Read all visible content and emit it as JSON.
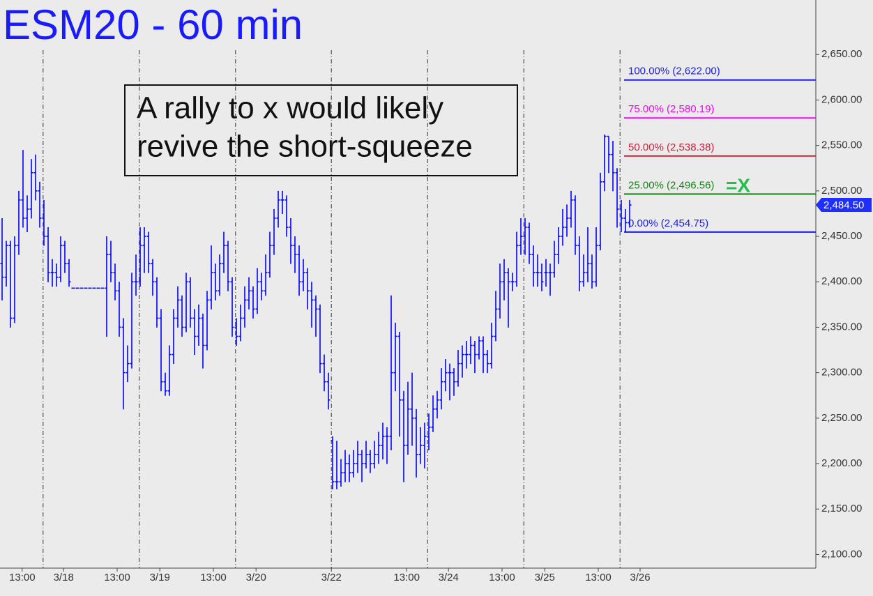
{
  "chart_data": {
    "type": "ohlc",
    "title": "ESM20 - 60 min",
    "annotation": {
      "lines": [
        "A rally to x would likely",
        "revive the short-squeeze"
      ]
    },
    "marker": {
      "text": "=X",
      "color": "#22c04a"
    },
    "color": "#0000ff",
    "xlim": [
      -0.5,
      194.5
    ],
    "ylim": [
      2085,
      2710
    ],
    "yticks": [
      {
        "value": 2100,
        "label": "2,100.00"
      },
      {
        "value": 2150,
        "label": "2,150.00"
      },
      {
        "value": 2200,
        "label": "2,200.00"
      },
      {
        "value": 2250,
        "label": "2,250.00"
      },
      {
        "value": 2300,
        "label": "2,300.00"
      },
      {
        "value": 2350,
        "label": "2,350.00"
      },
      {
        "value": 2400,
        "label": "2,400.00"
      },
      {
        "value": 2450,
        "label": "2,450.00"
      },
      {
        "value": 2500,
        "label": "2,500.00"
      },
      {
        "value": 2550,
        "label": "2,550.00"
      },
      {
        "value": 2600,
        "label": "2,600.00"
      },
      {
        "value": 2650,
        "label": "2,650.00"
      }
    ],
    "xticks": [
      {
        "value": 4.8,
        "label": "13:00"
      },
      {
        "value": 14.7,
        "label": "3/18"
      },
      {
        "value": 27.5,
        "label": "13:00"
      },
      {
        "value": 37.7,
        "label": "3/19"
      },
      {
        "value": 50.5,
        "label": "13:00"
      },
      {
        "value": 60.7,
        "label": "3/20"
      },
      {
        "value": 78.7,
        "label": "3/22"
      },
      {
        "value": 96.7,
        "label": "13:00"
      },
      {
        "value": 106.7,
        "label": "3/24"
      },
      {
        "value": 119.5,
        "label": "13:00"
      },
      {
        "value": 129.7,
        "label": "3/25"
      },
      {
        "value": 142.5,
        "label": "13:00"
      },
      {
        "value": 152.5,
        "label": "3/26"
      }
    ],
    "session_breaks": [
      9.8,
      32.8,
      55.8,
      78.7,
      101.7,
      124.7,
      147.7
    ],
    "fib_levels": [
      {
        "value": 2622.0,
        "label": "100.00% (2,622.00)",
        "color": "#1a1aff"
      },
      {
        "value": 2580.19,
        "label": "75.00% (2,580.19)",
        "color": "#ff00ff"
      },
      {
        "value": 2538.38,
        "label": "50.00% (2,538.38)",
        "color": "#d0203a"
      },
      {
        "value": 2496.56,
        "label": "25.00% (2,496.56)",
        "color": "#118811"
      },
      {
        "value": 2454.75,
        "label": "0.00% (2,454.75)",
        "color": "#1a1aff"
      }
    ],
    "current_price": {
      "value": 2484.5,
      "label": "2,484.50"
    },
    "bars": [
      [
        2420,
        2470,
        2380,
        2405
      ],
      [
        2405,
        2445,
        2395,
        2440
      ],
      [
        2440,
        2445,
        2350,
        2360
      ],
      [
        2360,
        2450,
        2355,
        2440
      ],
      [
        2440,
        2500,
        2430,
        2490
      ],
      [
        2490,
        2545,
        2460,
        2470
      ],
      [
        2470,
        2495,
        2455,
        2480
      ],
      [
        2480,
        2535,
        2470,
        2520
      ],
      [
        2520,
        2540,
        2490,
        2500
      ],
      [
        2500,
        2510,
        2460,
        2470
      ],
      [
        2470,
        2490,
        2440,
        2450
      ],
      [
        2450,
        2460,
        2400,
        2410
      ],
      [
        2410,
        2425,
        2395,
        2410
      ],
      [
        2410,
        2420,
        2395,
        2405
      ],
      [
        2405,
        2450,
        2400,
        2440
      ],
      [
        2440,
        2445,
        2410,
        2420
      ],
      [
        2420,
        2425,
        2395,
        2400
      ],
      [
        2393,
        2393,
        2393,
        2393
      ],
      [
        2393,
        2393,
        2393,
        2393
      ],
      [
        2393,
        2393,
        2393,
        2393
      ],
      [
        2393,
        2393,
        2393,
        2393
      ],
      [
        2393,
        2393,
        2393,
        2393
      ],
      [
        2393,
        2393,
        2393,
        2393
      ],
      [
        2393,
        2393,
        2393,
        2393
      ],
      [
        2393,
        2393,
        2393,
        2393
      ],
      [
        2393,
        2450,
        2340,
        2430
      ],
      [
        2430,
        2445,
        2400,
        2410
      ],
      [
        2410,
        2420,
        2380,
        2390
      ],
      [
        2390,
        2400,
        2340,
        2350
      ],
      [
        2350,
        2360,
        2260,
        2300
      ],
      [
        2300,
        2330,
        2290,
        2310
      ],
      [
        2310,
        2410,
        2305,
        2400
      ],
      [
        2400,
        2430,
        2385,
        2400
      ],
      [
        2400,
        2460,
        2395,
        2440
      ],
      [
        2440,
        2460,
        2410,
        2450
      ],
      [
        2450,
        2455,
        2410,
        2420
      ],
      [
        2420,
        2425,
        2385,
        2400
      ],
      [
        2400,
        2405,
        2350,
        2360
      ],
      [
        2360,
        2370,
        2280,
        2290
      ],
      [
        2290,
        2300,
        2275,
        2280
      ],
      [
        2280,
        2330,
        2275,
        2320
      ],
      [
        2320,
        2370,
        2310,
        2360
      ],
      [
        2360,
        2395,
        2350,
        2380
      ],
      [
        2380,
        2385,
        2340,
        2350
      ],
      [
        2350,
        2410,
        2345,
        2400
      ],
      [
        2400,
        2405,
        2350,
        2360
      ],
      [
        2360,
        2370,
        2320,
        2340
      ],
      [
        2340,
        2375,
        2330,
        2360
      ],
      [
        2360,
        2365,
        2305,
        2330
      ],
      [
        2330,
        2390,
        2325,
        2380
      ],
      [
        2380,
        2440,
        2370,
        2410
      ],
      [
        2410,
        2420,
        2380,
        2390
      ],
      [
        2390,
        2430,
        2385,
        2420
      ],
      [
        2420,
        2455,
        2410,
        2440
      ],
      [
        2440,
        2445,
        2390,
        2400
      ],
      [
        2400,
        2405,
        2340,
        2350
      ],
      [
        2350,
        2360,
        2330,
        2340
      ],
      [
        2340,
        2375,
        2335,
        2360
      ],
      [
        2360,
        2395,
        2350,
        2380
      ],
      [
        2380,
        2405,
        2370,
        2390
      ],
      [
        2390,
        2395,
        2360,
        2370
      ],
      [
        2370,
        2415,
        2365,
        2400
      ],
      [
        2400,
        2410,
        2380,
        2390
      ],
      [
        2390,
        2430,
        2385,
        2410
      ],
      [
        2410,
        2455,
        2405,
        2440
      ],
      [
        2440,
        2480,
        2430,
        2470
      ],
      [
        2470,
        2500,
        2460,
        2490
      ],
      [
        2490,
        2500,
        2475,
        2490
      ],
      [
        2490,
        2495,
        2450,
        2460
      ],
      [
        2460,
        2470,
        2420,
        2440
      ],
      [
        2440,
        2450,
        2410,
        2430
      ],
      [
        2430,
        2440,
        2385,
        2400
      ],
      [
        2400,
        2425,
        2390,
        2410
      ],
      [
        2410,
        2415,
        2370,
        2390
      ],
      [
        2390,
        2400,
        2350,
        2380
      ],
      [
        2380,
        2385,
        2340,
        2370
      ],
      [
        2370,
        2375,
        2300,
        2310
      ],
      [
        2310,
        2320,
        2280,
        2290
      ],
      [
        2290,
        2300,
        2260,
        2270
      ],
      [
        2225,
        2230,
        2172,
        2180
      ],
      [
        2180,
        2225,
        2172,
        2180
      ],
      [
        2180,
        2205,
        2175,
        2190
      ],
      [
        2190,
        2215,
        2180,
        2200
      ],
      [
        2200,
        2210,
        2180,
        2190
      ],
      [
        2190,
        2215,
        2185,
        2200
      ],
      [
        2200,
        2225,
        2190,
        2210
      ],
      [
        2210,
        2215,
        2180,
        2200
      ],
      [
        2200,
        2225,
        2195,
        2210
      ],
      [
        2210,
        2215,
        2190,
        2200
      ],
      [
        2200,
        2225,
        2195,
        2210
      ],
      [
        2210,
        2235,
        2200,
        2220
      ],
      [
        2220,
        2245,
        2205,
        2230
      ],
      [
        2230,
        2240,
        2200,
        2230
      ],
      [
        2230,
        2385,
        2215,
        2300
      ],
      [
        2300,
        2355,
        2280,
        2340
      ],
      [
        2340,
        2345,
        2230,
        2270
      ],
      [
        2270,
        2280,
        2180,
        2220
      ],
      [
        2220,
        2290,
        2210,
        2260
      ],
      [
        2260,
        2300,
        2220,
        2250
      ],
      [
        2250,
        2260,
        2185,
        2210
      ],
      [
        2210,
        2240,
        2200,
        2220
      ],
      [
        2220,
        2245,
        2195,
        2230
      ],
      [
        2230,
        2255,
        2215,
        2240
      ],
      [
        2240,
        2275,
        2235,
        2260
      ],
      [
        2260,
        2280,
        2250,
        2270
      ],
      [
        2270,
        2305,
        2260,
        2290
      ],
      [
        2290,
        2315,
        2280,
        2300
      ],
      [
        2300,
        2310,
        2270,
        2300
      ],
      [
        2300,
        2305,
        2275,
        2290
      ],
      [
        2290,
        2325,
        2285,
        2310
      ],
      [
        2310,
        2330,
        2295,
        2320
      ],
      [
        2320,
        2335,
        2305,
        2320
      ],
      [
        2320,
        2340,
        2310,
        2330
      ],
      [
        2330,
        2335,
        2300,
        2320
      ],
      [
        2320,
        2340,
        2315,
        2335
      ],
      [
        2335,
        2340,
        2300,
        2320
      ],
      [
        2320,
        2325,
        2300,
        2310
      ],
      [
        2310,
        2355,
        2305,
        2340
      ],
      [
        2340,
        2390,
        2335,
        2370
      ],
      [
        2370,
        2420,
        2360,
        2400
      ],
      [
        2400,
        2425,
        2380,
        2410
      ],
      [
        2410,
        2415,
        2350,
        2400
      ],
      [
        2400,
        2410,
        2390,
        2400
      ],
      [
        2400,
        2455,
        2395,
        2440
      ],
      [
        2440,
        2470,
        2430,
        2450
      ],
      [
        2450,
        2470,
        2430,
        2460
      ],
      [
        2460,
        2465,
        2420,
        2430
      ],
      [
        2430,
        2440,
        2395,
        2410
      ],
      [
        2410,
        2430,
        2395,
        2410
      ],
      [
        2410,
        2420,
        2390,
        2400
      ],
      [
        2410,
        2425,
        2395,
        2410
      ],
      [
        2410,
        2420,
        2385,
        2410
      ],
      [
        2410,
        2445,
        2405,
        2430
      ],
      [
        2430,
        2460,
        2420,
        2450
      ],
      [
        2450,
        2480,
        2440,
        2460
      ],
      [
        2460,
        2485,
        2450,
        2470
      ],
      [
        2470,
        2500,
        2460,
        2490
      ],
      [
        2490,
        2495,
        2430,
        2440
      ],
      [
        2440,
        2450,
        2390,
        2400
      ],
      [
        2400,
        2430,
        2395,
        2410
      ],
      [
        2410,
        2460,
        2400,
        2420
      ],
      [
        2420,
        2430,
        2393,
        2400
      ],
      [
        2400,
        2460,
        2395,
        2440
      ],
      [
        2440,
        2520,
        2435,
        2510
      ],
      [
        2510,
        2562,
        2500,
        2560
      ],
      [
        2560,
        2560,
        2520,
        2540
      ],
      [
        2540,
        2555,
        2500,
        2520
      ],
      [
        2520,
        2525,
        2460,
        2480
      ],
      [
        2480,
        2490,
        2455,
        2470
      ],
      [
        2470,
        2480,
        2455,
        2465
      ],
      [
        2465,
        2490,
        2460,
        2484.5
      ]
    ]
  }
}
